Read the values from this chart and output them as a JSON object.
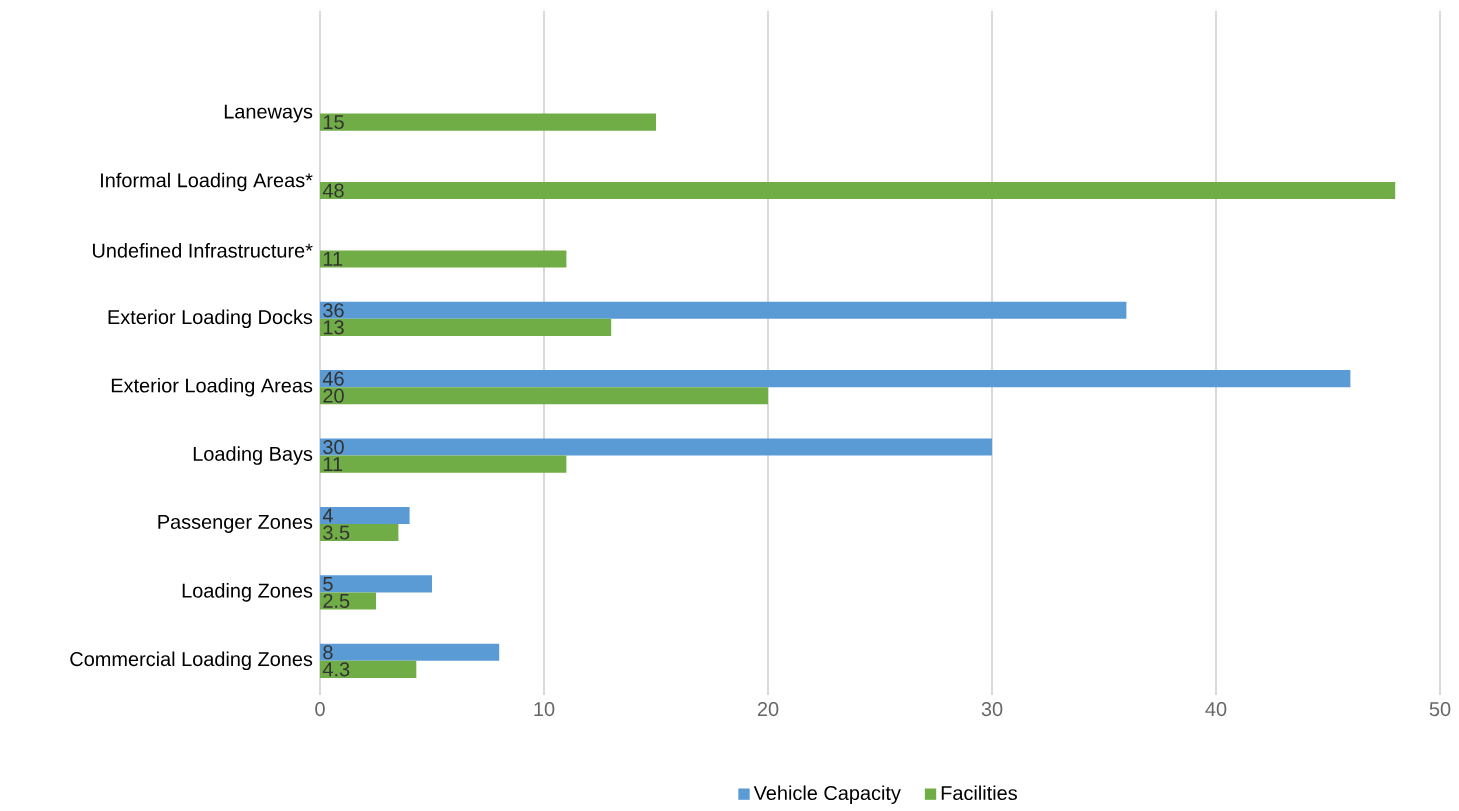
{
  "chart_data": {
    "type": "bar",
    "orientation": "horizontal",
    "categories": [
      "Laneways",
      "Informal Loading Areas*",
      "Undefined Infrastructure*",
      "Exterior Loading Docks",
      "Exterior Loading Areas",
      "Loading Bays",
      "Passenger Zones",
      "Loading Zones",
      "Commercial Loading Zones"
    ],
    "series": [
      {
        "name": "Vehicle Capacity",
        "color": "#5b9bd5",
        "values": [
          null,
          null,
          null,
          36,
          46,
          30,
          4,
          5,
          8
        ]
      },
      {
        "name": "Facilities",
        "color": "#70ad47",
        "values": [
          15,
          48,
          11,
          13,
          20,
          11,
          3.5,
          2.5,
          4.3
        ]
      }
    ],
    "xlim": [
      0,
      50
    ],
    "xticks": [
      0,
      10,
      20,
      30,
      40,
      50
    ],
    "grid": "x",
    "legend": "bottom",
    "data_labels": true
  }
}
